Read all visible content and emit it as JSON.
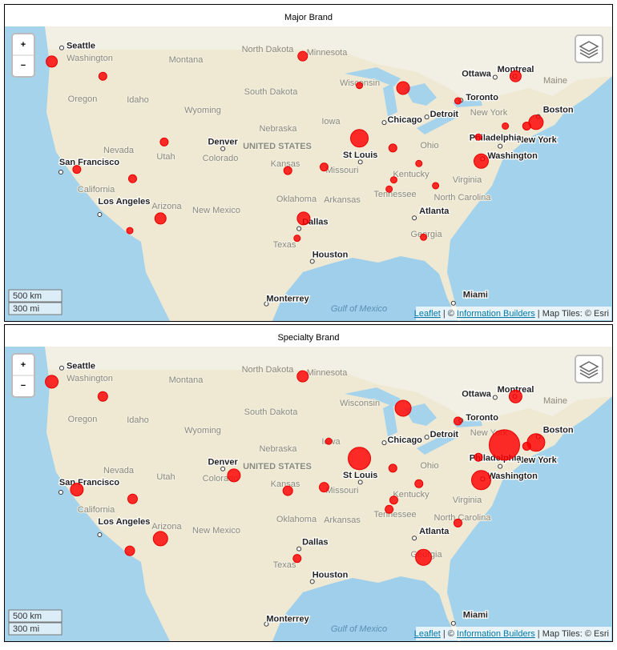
{
  "panels": [
    {
      "title": "Major Brand",
      "bubbles": [
        {
          "lon": -123.4,
          "lat": 46.6,
          "value": 7
        },
        {
          "lon": -117.9,
          "lat": 45.5,
          "value": 5
        },
        {
          "lon": -96.4,
          "lat": 47.0,
          "value": 6
        },
        {
          "lon": -90.3,
          "lat": 44.8,
          "value": 4
        },
        {
          "lon": -85.6,
          "lat": 44.6,
          "value": 8
        },
        {
          "lon": -73.5,
          "lat": 45.5,
          "value": 7
        },
        {
          "lon": -79.7,
          "lat": 43.6,
          "value": 4
        },
        {
          "lon": -74.6,
          "lat": 41.6,
          "value": 4
        },
        {
          "lon": -71.3,
          "lat": 41.9,
          "value": 9
        },
        {
          "lon": -72.3,
          "lat": 41.6,
          "value": 5
        },
        {
          "lon": -77.5,
          "lat": 40.7,
          "value": 4
        },
        {
          "lon": -77.2,
          "lat": 38.7,
          "value": 9
        },
        {
          "lon": -90.3,
          "lat": 40.6,
          "value": 11
        },
        {
          "lon": -86.7,
          "lat": 39.8,
          "value": 5
        },
        {
          "lon": -83.9,
          "lat": 38.5,
          "value": 4
        },
        {
          "lon": -86.6,
          "lat": 37.1,
          "value": 4
        },
        {
          "lon": -87.1,
          "lat": 36.3,
          "value": 4
        },
        {
          "lon": -82.1,
          "lat": 36.6,
          "value": 4
        },
        {
          "lon": -94.1,
          "lat": 38.2,
          "value": 5
        },
        {
          "lon": -98.0,
          "lat": 37.9,
          "value": 5
        },
        {
          "lon": -111.3,
          "lat": 40.3,
          "value": 5
        },
        {
          "lon": -120.7,
          "lat": 38.0,
          "value": 5
        },
        {
          "lon": -114.7,
          "lat": 37.2,
          "value": 5
        },
        {
          "lon": -111.7,
          "lat": 33.7,
          "value": 7
        },
        {
          "lon": -115.0,
          "lat": 32.6,
          "value": 4
        },
        {
          "lon": -96.3,
          "lat": 33.7,
          "value": 8
        },
        {
          "lon": -97.0,
          "lat": 31.9,
          "value": 4
        },
        {
          "lon": -83.4,
          "lat": 32.0,
          "value": 4
        }
      ]
    },
    {
      "title": "Specialty Brand",
      "bubbles": [
        {
          "lon": -123.4,
          "lat": 46.6,
          "value": 8
        },
        {
          "lon": -117.9,
          "lat": 45.5,
          "value": 6
        },
        {
          "lon": -96.4,
          "lat": 47.0,
          "value": 7
        },
        {
          "lon": -85.6,
          "lat": 44.6,
          "value": 10
        },
        {
          "lon": -73.5,
          "lat": 45.5,
          "value": 8
        },
        {
          "lon": -79.7,
          "lat": 43.6,
          "value": 5
        },
        {
          "lon": -74.7,
          "lat": 41.7,
          "value": 19
        },
        {
          "lon": -71.3,
          "lat": 41.9,
          "value": 11
        },
        {
          "lon": -72.3,
          "lat": 41.6,
          "value": 5
        },
        {
          "lon": -77.5,
          "lat": 40.7,
          "value": 5
        },
        {
          "lon": -77.2,
          "lat": 38.8,
          "value": 12
        },
        {
          "lon": -90.3,
          "lat": 40.6,
          "value": 14
        },
        {
          "lon": -86.7,
          "lat": 39.8,
          "value": 5
        },
        {
          "lon": -83.9,
          "lat": 38.5,
          "value": 5
        },
        {
          "lon": -86.6,
          "lat": 37.1,
          "value": 5
        },
        {
          "lon": -87.1,
          "lat": 36.3,
          "value": 5
        },
        {
          "lon": -94.1,
          "lat": 38.2,
          "value": 6
        },
        {
          "lon": -98.0,
          "lat": 37.9,
          "value": 6
        },
        {
          "lon": -103.8,
          "lat": 39.2,
          "value": 8
        },
        {
          "lon": -93.6,
          "lat": 42.0,
          "value": 4
        },
        {
          "lon": -120.7,
          "lat": 38.0,
          "value": 8
        },
        {
          "lon": -114.7,
          "lat": 37.2,
          "value": 6
        },
        {
          "lon": -111.7,
          "lat": 33.7,
          "value": 9
        },
        {
          "lon": -115.0,
          "lat": 32.6,
          "value": 6
        },
        {
          "lon": -97.0,
          "lat": 31.9,
          "value": 5
        },
        {
          "lon": -83.4,
          "lat": 32.0,
          "value": 10
        },
        {
          "lon": -79.7,
          "lat": 35.1,
          "value": 5
        }
      ]
    }
  ],
  "basemap": {
    "cities": [
      {
        "name": "Seattle",
        "lon": -122.33,
        "lat": 47.61
      },
      {
        "name": "Ottawa",
        "lon": -75.7,
        "lat": 45.42
      },
      {
        "name": "Montreal",
        "lon": -73.57,
        "lat": 45.5
      },
      {
        "name": "Toronto",
        "lon": -79.38,
        "lat": 43.65
      },
      {
        "name": "Chicago",
        "lon": -87.63,
        "lat": 41.88
      },
      {
        "name": "Detroit",
        "lon": -83.05,
        "lat": 42.33
      },
      {
        "name": "Boston",
        "lon": -71.06,
        "lat": 42.36
      },
      {
        "name": "New York",
        "lon": -74.0,
        "lat": 40.71
      },
      {
        "name": "Philadelphia",
        "lon": -75.16,
        "lat": 39.95
      },
      {
        "name": "Washington",
        "lon": -77.04,
        "lat": 38.9
      },
      {
        "name": "Denver",
        "lon": -104.99,
        "lat": 39.74
      },
      {
        "name": "St Louis",
        "lon": -90.2,
        "lat": 38.63
      },
      {
        "name": "San Francisco",
        "lon": -122.42,
        "lat": 37.77
      },
      {
        "name": "Los Angeles",
        "lon": -118.24,
        "lat": 34.05
      },
      {
        "name": "Dallas",
        "lon": -96.8,
        "lat": 32.78
      },
      {
        "name": "Atlanta",
        "lon": -84.39,
        "lat": 33.75
      },
      {
        "name": "Houston",
        "lon": -95.37,
        "lat": 29.76
      },
      {
        "name": "Monterrey",
        "lon": -100.31,
        "lat": 25.69
      },
      {
        "name": "Miami",
        "lon": -80.19,
        "lat": 25.76
      }
    ],
    "regions": [
      "Washington",
      "Montana",
      "North Dakota",
      "Minnesota",
      "Oregon",
      "Idaho",
      "South Dakota",
      "Wisconsin",
      "Wyoming",
      "Maine",
      "New York",
      "Nebraska",
      "Iowa",
      "Ohio",
      "Nevada",
      "Utah",
      "Colorado",
      "Kansas",
      "Missouri",
      "Kentucky",
      "Virginia",
      "California",
      "Arizona",
      "New Mexico",
      "Oklahoma",
      "Arkansas",
      "Tennessee",
      "North Carolina",
      "Texas",
      "Georgia"
    ],
    "country_label": "UNITED STATES",
    "water_label": "Gulf of Mexico",
    "scale": [
      "500 km",
      "300 mi"
    ],
    "zoom": [
      "+",
      "−"
    ],
    "attribution": [
      "Leaflet",
      " | © ",
      "Information Builders",
      " | Map Tiles: © Esri"
    ]
  }
}
